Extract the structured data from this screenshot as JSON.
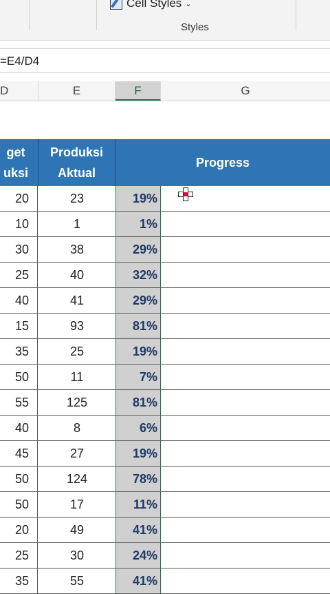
{
  "ribbon": {
    "cell_styles_label": "Cell Styles",
    "group_label": "Styles"
  },
  "formula_bar": {
    "text": "=E4/D4"
  },
  "column_headers": [
    "D",
    "E",
    "F",
    "G"
  ],
  "selected_column": "F",
  "table": {
    "headers": {
      "target": "get\nuksi",
      "aktual": "Produksi\nAktual",
      "progress": "Progress"
    },
    "rows": [
      {
        "d": "20",
        "e": "23",
        "f": "19%"
      },
      {
        "d": "10",
        "e": "1",
        "f": "1%"
      },
      {
        "d": "30",
        "e": "38",
        "f": "29%"
      },
      {
        "d": "25",
        "e": "40",
        "f": "32%"
      },
      {
        "d": "40",
        "e": "41",
        "f": "29%"
      },
      {
        "d": "15",
        "e": "93",
        "f": "81%"
      },
      {
        "d": "35",
        "e": "25",
        "f": "19%"
      },
      {
        "d": "50",
        "e": "11",
        "f": "7%"
      },
      {
        "d": "55",
        "e": "125",
        "f": "81%"
      },
      {
        "d": "40",
        "e": "8",
        "f": "6%"
      },
      {
        "d": "45",
        "e": "27",
        "f": "19%"
      },
      {
        "d": "50",
        "e": "124",
        "f": "78%"
      },
      {
        "d": "50",
        "e": "17",
        "f": "11%"
      },
      {
        "d": "20",
        "e": "49",
        "f": "41%"
      },
      {
        "d": "25",
        "e": "30",
        "f": "24%"
      },
      {
        "d": "35",
        "e": "55",
        "f": "41%"
      }
    ]
  },
  "colors": {
    "header_blue": "#2e75b6",
    "selection_green": "#217346",
    "selected_fill": "#d0d0d0"
  }
}
